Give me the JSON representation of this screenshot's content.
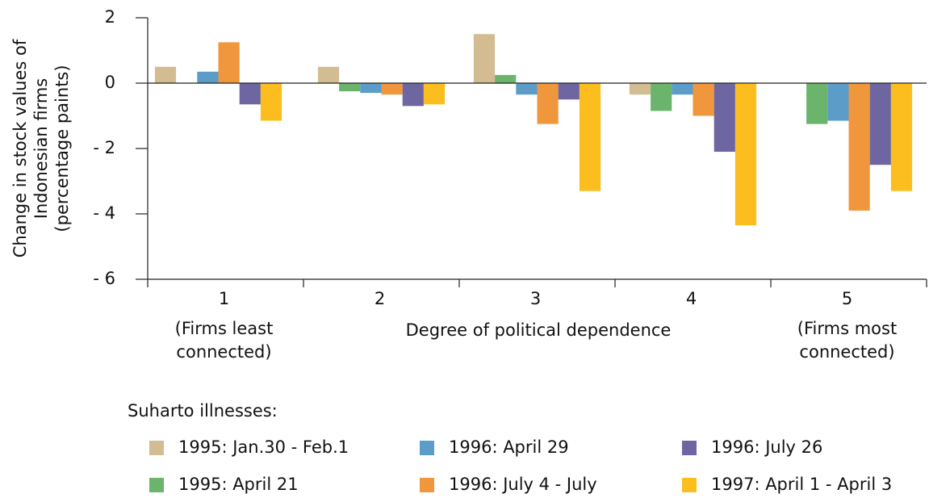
{
  "chart_data": {
    "type": "bar",
    "ylabel": [
      "Change in stock values of",
      "Indonesian firms",
      "(percentage paints)"
    ],
    "xlabel": "Degree of political dependence",
    "categories": [
      "1",
      "2",
      "3",
      "4",
      "5"
    ],
    "category_notes": [
      [
        "(Firms least",
        "connected)"
      ],
      [
        "(Firms most",
        "connected)"
      ]
    ],
    "legend_title": "Suharto illnesses:",
    "series": [
      {
        "name": "1995: Jan.30 - Feb.1",
        "color": "#d3bc92",
        "values": [
          0.5,
          0.5,
          1.5,
          -0.35,
          null
        ]
      },
      {
        "name": "1995: April 21",
        "color": "#6ab46c",
        "values": [
          null,
          -0.25,
          0.25,
          -0.85,
          -1.25
        ]
      },
      {
        "name": "1996: April 29",
        "color": "#5c9cc9",
        "values": [
          0.35,
          -0.3,
          -0.35,
          -0.35,
          -1.15
        ]
      },
      {
        "name": "1996: July 4 - July",
        "color": "#f0963d",
        "values": [
          1.25,
          -0.35,
          -1.25,
          -1.0,
          -3.9
        ]
      },
      {
        "name": "1996: July 26",
        "color": "#6e66a0",
        "values": [
          -0.65,
          -0.7,
          -0.5,
          -2.1,
          -2.5
        ]
      },
      {
        "name": "1997: April 1 - April 3",
        "color": "#fcbe1f",
        "values": [
          -1.15,
          -0.65,
          -3.3,
          -4.35,
          -3.3
        ]
      }
    ],
    "ylim": [
      -6,
      2
    ],
    "yticks": [
      {
        "value": -6,
        "label": "- 6"
      },
      {
        "value": -4,
        "label": "- 4"
      },
      {
        "value": -2,
        "label": "- 2"
      },
      0,
      2
    ]
  }
}
